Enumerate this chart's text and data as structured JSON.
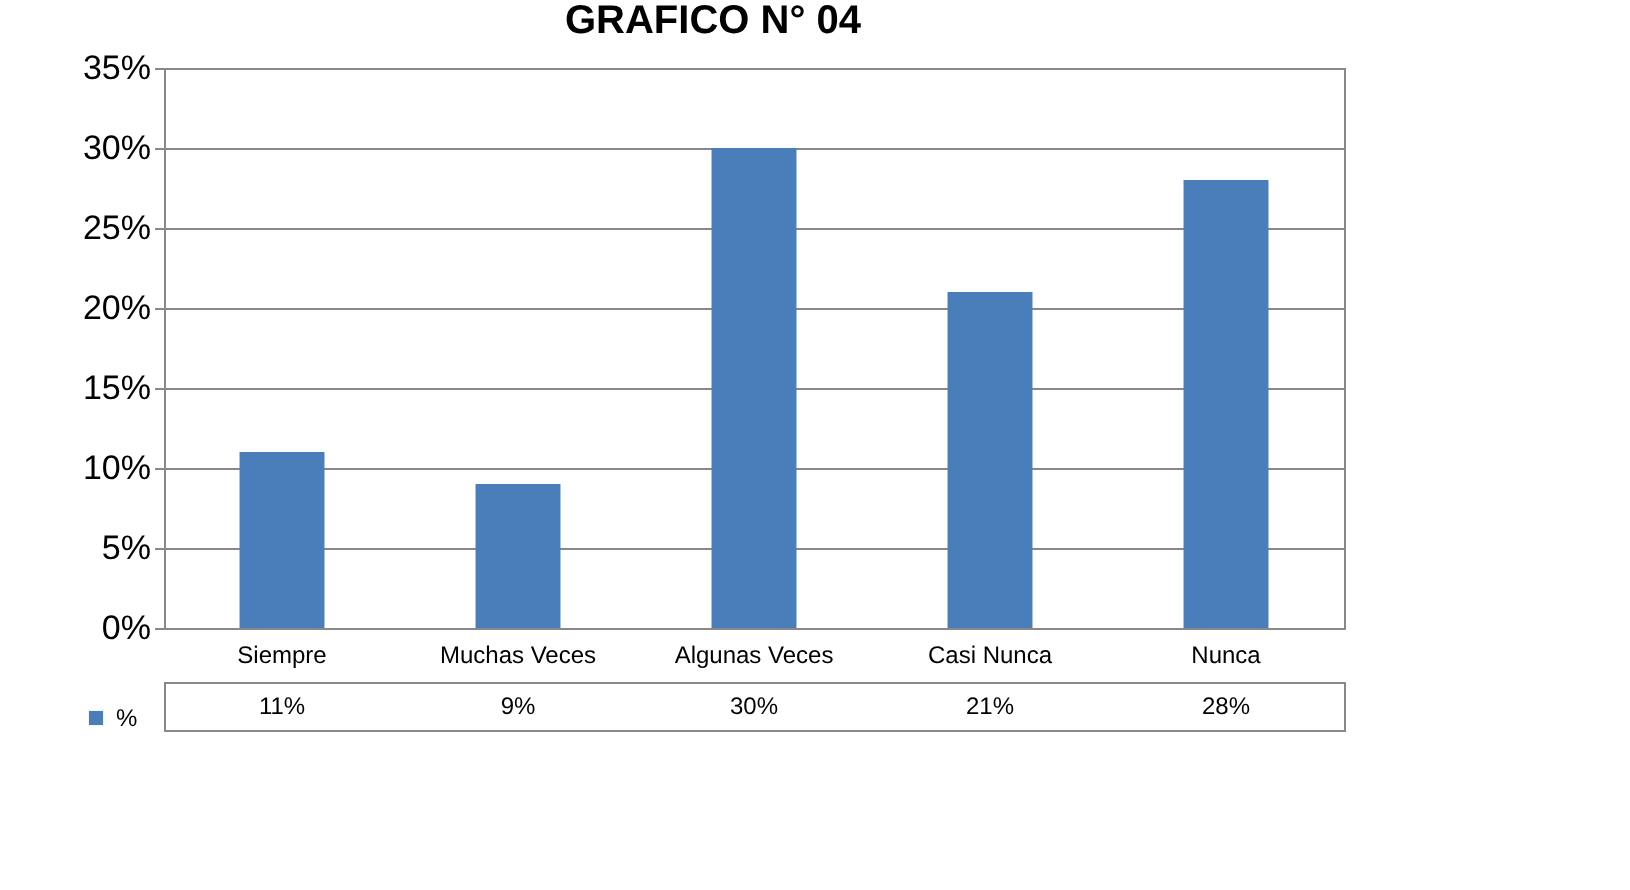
{
  "chart_data": {
    "type": "bar",
    "title": "GRAFICO N° 04",
    "categories": [
      "Siempre",
      "Muchas Veces",
      "Algunas Veces",
      "Casi Nunca",
      "Nunca"
    ],
    "series": [
      {
        "name": "%",
        "color": "#4a7ebb",
        "values": [
          11,
          9,
          30,
          21,
          28
        ],
        "value_labels": [
          "11%",
          "9%",
          "30%",
          "21%",
          "28%"
        ]
      }
    ],
    "ylim": [
      0,
      35
    ],
    "yticks": [
      {
        "value": 0,
        "label": "0%"
      },
      {
        "value": 5,
        "label": "5%"
      },
      {
        "value": 10,
        "label": "10%"
      },
      {
        "value": 15,
        "label": "15%"
      },
      {
        "value": 20,
        "label": "20%"
      },
      {
        "value": 25,
        "label": "25%"
      },
      {
        "value": 30,
        "label": "30%"
      },
      {
        "value": 35,
        "label": "35%"
      }
    ],
    "grid": true,
    "legend": "bottom left"
  }
}
